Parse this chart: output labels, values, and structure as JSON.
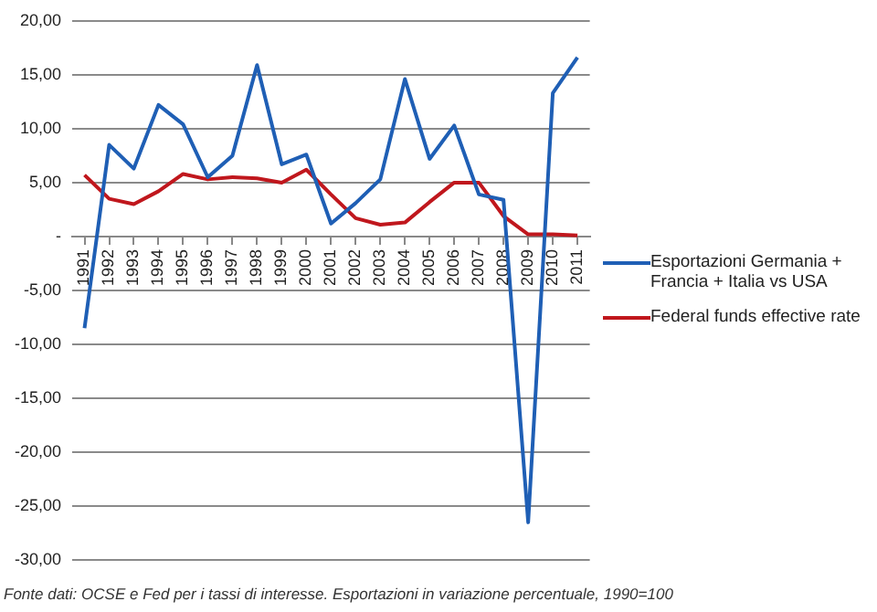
{
  "chart_data": {
    "type": "line",
    "categories": [
      "1991",
      "1992",
      "1993",
      "1994",
      "1995",
      "1996",
      "1997",
      "1998",
      "1999",
      "2000",
      "2001",
      "2002",
      "2003",
      "2004",
      "2005",
      "2006",
      "2007",
      "2008",
      "2009",
      "2010",
      "2011"
    ],
    "series": [
      {
        "name": "Esportazioni Germania + Francia + Italia vs USA",
        "color": "#1f5fb5",
        "values": [
          -8.5,
          8.5,
          6.3,
          12.2,
          10.4,
          5.5,
          7.5,
          15.9,
          6.7,
          7.6,
          1.2,
          3.1,
          5.3,
          14.6,
          7.2,
          10.3,
          3.9,
          3.4,
          -26.5,
          13.3,
          16.6
        ]
      },
      {
        "name": "Federal funds effective rate",
        "color": "#c0171d",
        "values": [
          5.7,
          3.5,
          3.0,
          4.2,
          5.8,
          5.3,
          5.5,
          5.4,
          5.0,
          6.2,
          3.9,
          1.7,
          1.1,
          1.3,
          3.2,
          5.0,
          5.0,
          1.9,
          0.2,
          0.2,
          0.1
        ]
      }
    ],
    "ylim": [
      -30,
      20
    ],
    "yticks": [
      {
        "value": -30,
        "label": "-30,00"
      },
      {
        "value": -25,
        "label": "-25,00"
      },
      {
        "value": -20,
        "label": "-20,00"
      },
      {
        "value": -15,
        "label": "-15,00"
      },
      {
        "value": -10,
        "label": "-10,00"
      },
      {
        "value": -5,
        "label": "-5,00"
      },
      {
        "value": 0,
        "label": "-"
      },
      {
        "value": 5,
        "label": "5,00"
      },
      {
        "value": 10,
        "label": "10,00"
      },
      {
        "value": 15,
        "label": "15,00"
      },
      {
        "value": 20,
        "label": "20,00"
      }
    ],
    "grid": "y",
    "legend": "right",
    "marker": "none",
    "line_style": "solid",
    "annotations": [
      "Fonte dati: OCSE e Fed per i tassi di interesse. Esportazioni in variazione percentuale, 1990=100"
    ]
  }
}
